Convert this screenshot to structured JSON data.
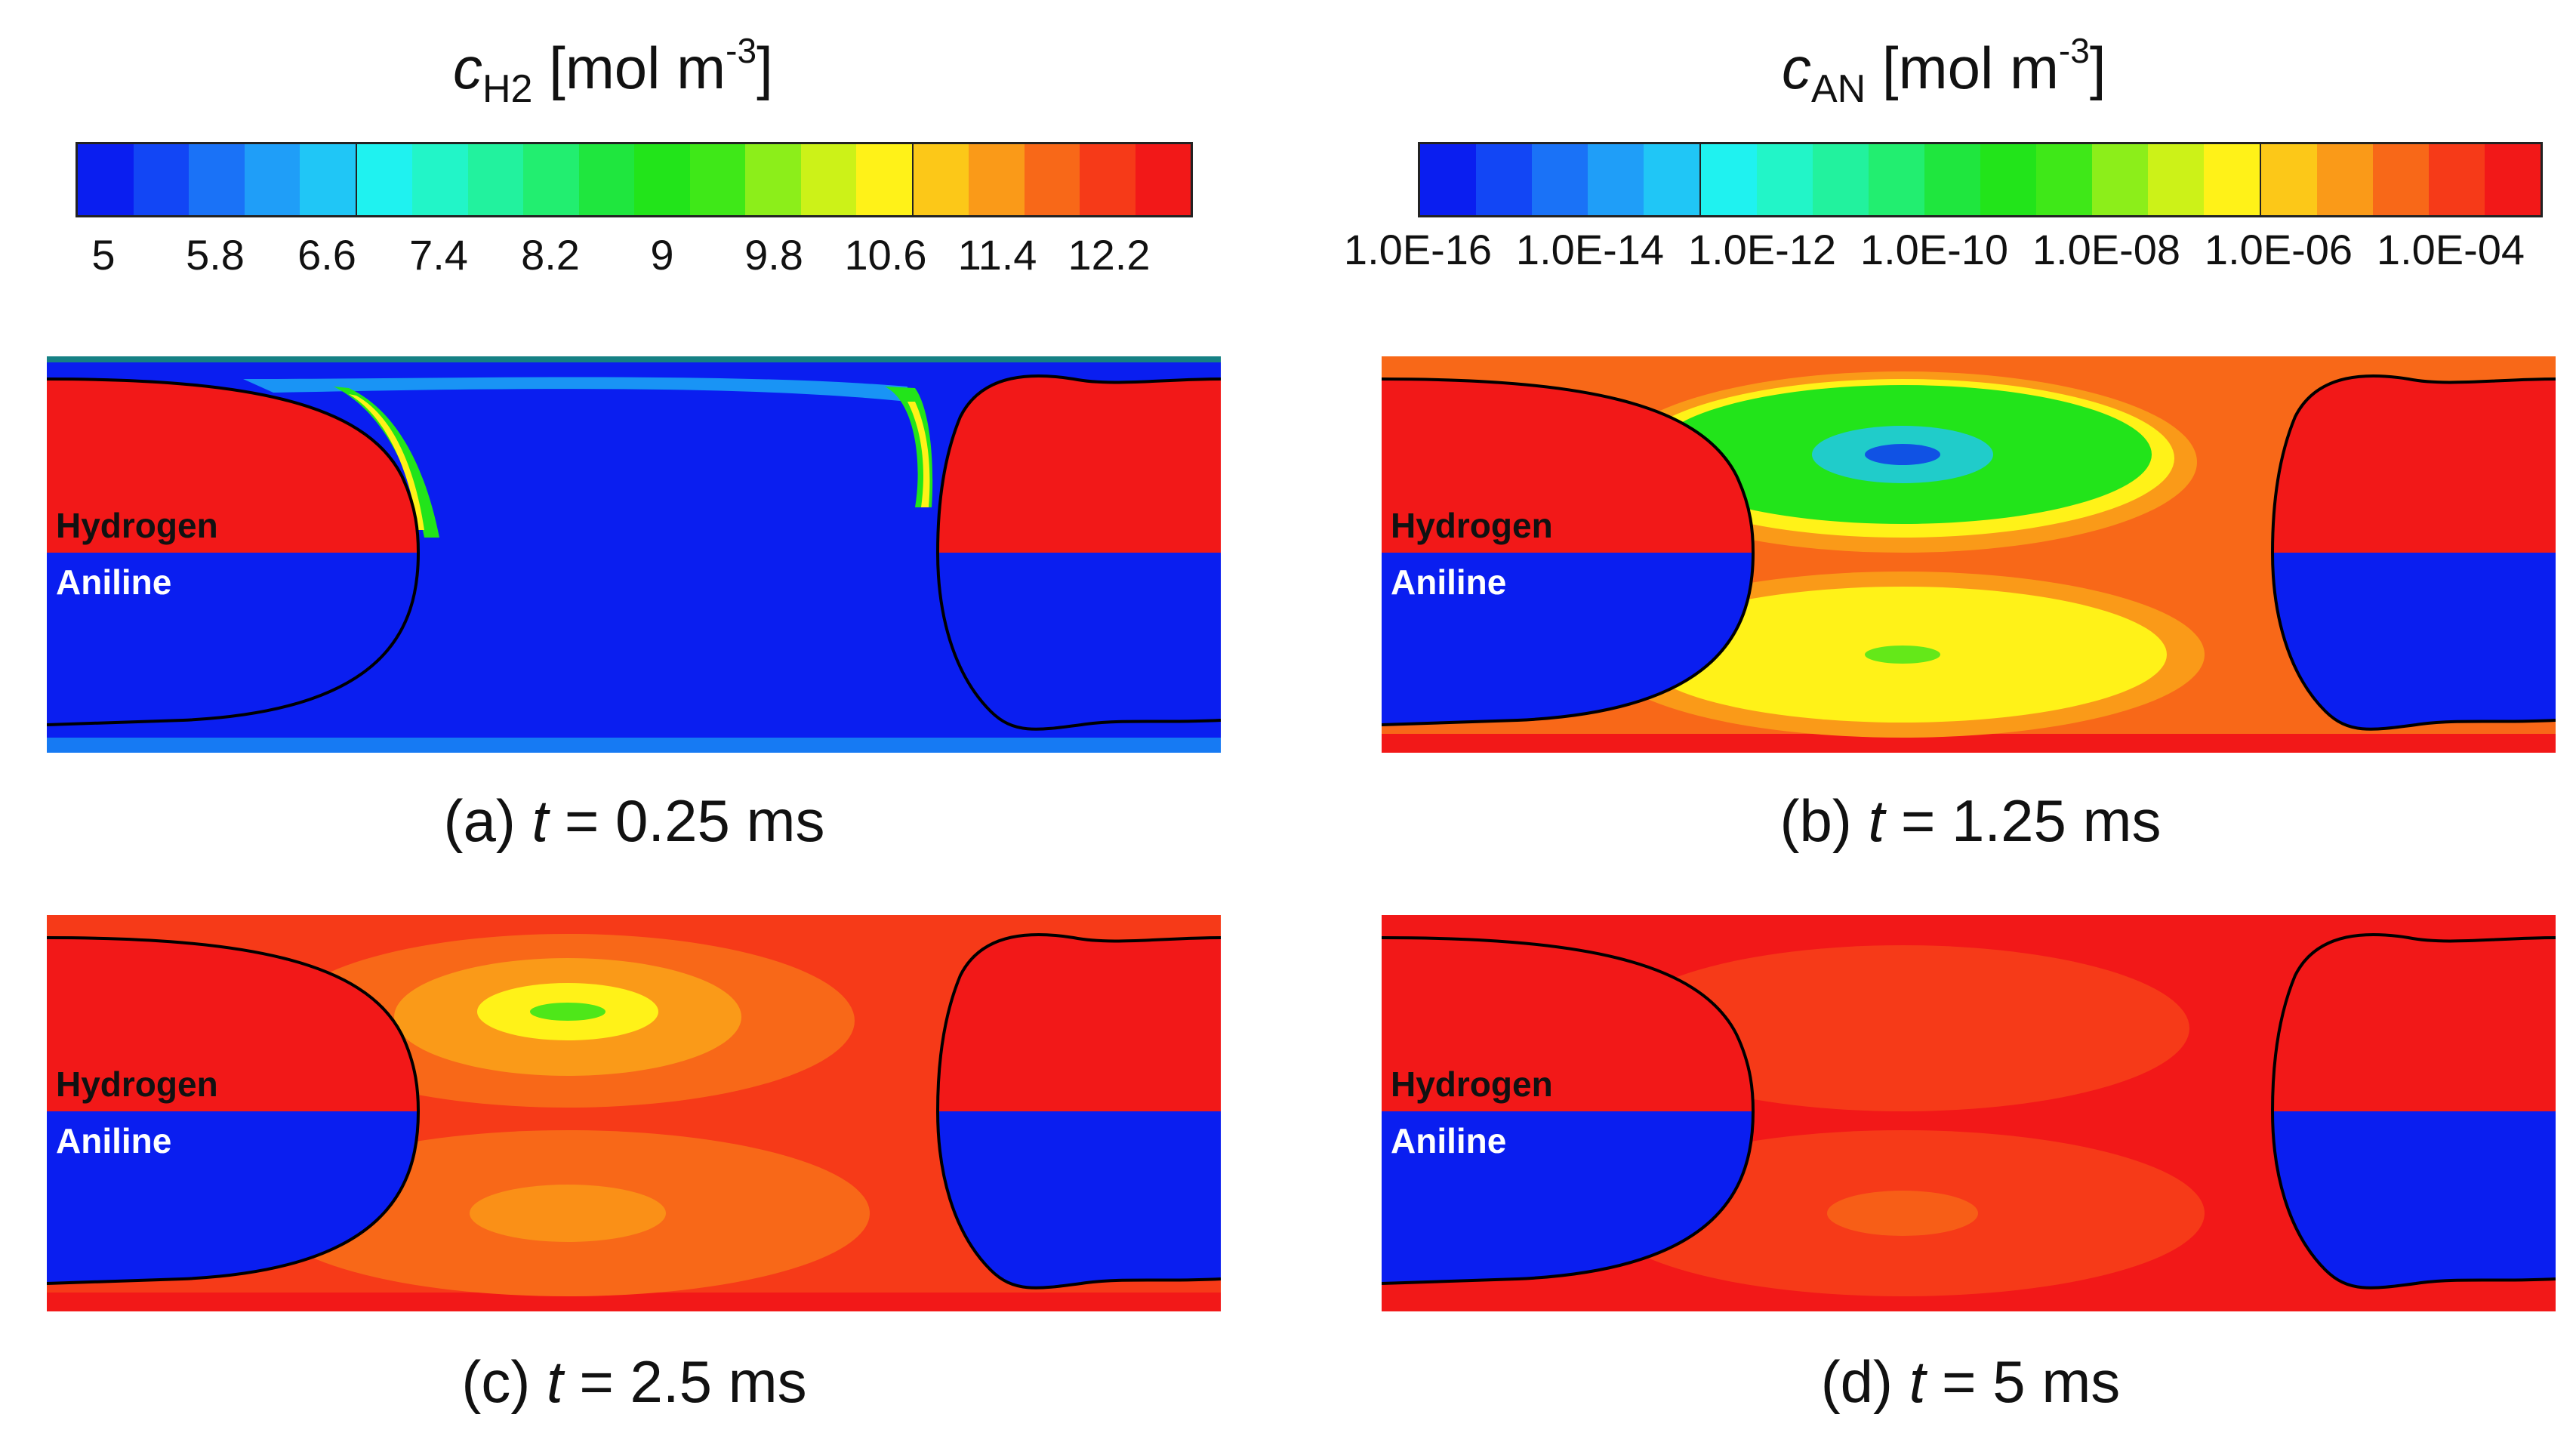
{
  "colorbars": [
    {
      "id": "h2",
      "title_symbol": "c",
      "title_subscript": "H2",
      "title_unit_pre": " [mol m",
      "title_superscript": "-3",
      "title_unit_post": "]",
      "ticks": [
        "5",
        "5.8",
        "6.6",
        "7.4",
        "8.2",
        "9",
        "9.8",
        "10.6",
        "11.4",
        "12.2"
      ]
    },
    {
      "id": "an",
      "title_symbol": "c",
      "title_subscript": "AN",
      "title_unit_pre": " [mol m",
      "title_superscript": "-3",
      "title_unit_post": "]",
      "ticks": [
        "1.0E-16",
        "1.0E-14",
        "1.0E-12",
        "1.0E-10",
        "1.0E-08",
        "1.0E-06",
        "1.0E-04"
      ]
    }
  ],
  "colors": {
    "scale": [
      "#0a1ef0",
      "#1246f5",
      "#1a72f7",
      "#1f9ef8",
      "#20c6f6",
      "#1ff2f0",
      "#22f5c8",
      "#22f29e",
      "#22ee70",
      "#1fe63e",
      "#22e41a",
      "#3fe818",
      "#8cee1a",
      "#ccf218",
      "#fff218",
      "#fcc818",
      "#fa9a18",
      "#f86818",
      "#f63a18",
      "#f21818"
    ],
    "red": "#f21818",
    "blue": "#0a1ef0",
    "orange": "#f86818",
    "orange_red": "#f63a18",
    "light_orange": "#fa9a18",
    "yellow": "#fff218",
    "green": "#22e41a",
    "cyan": "#20c6f6"
  },
  "panels": [
    {
      "id": "a",
      "caption_pre": "(a) ",
      "caption_var": "t",
      "caption_post": " = 0.25 ms",
      "label_gas": "Hydrogen",
      "label_liquid": "Aniline"
    },
    {
      "id": "b",
      "caption_pre": "(b) ",
      "caption_var": "t",
      "caption_post": " = 1.25 ms",
      "label_gas": "Hydrogen",
      "label_liquid": "Aniline"
    },
    {
      "id": "c",
      "caption_pre": "(c) ",
      "caption_var": "t",
      "caption_post": " = 2.5 ms",
      "label_gas": "Hydrogen",
      "label_liquid": "Aniline"
    },
    {
      "id": "d",
      "caption_pre": "(d) ",
      "caption_var": "t",
      "caption_post": " = 5 ms",
      "label_gas": "Hydrogen",
      "label_liquid": "Aniline"
    }
  ]
}
